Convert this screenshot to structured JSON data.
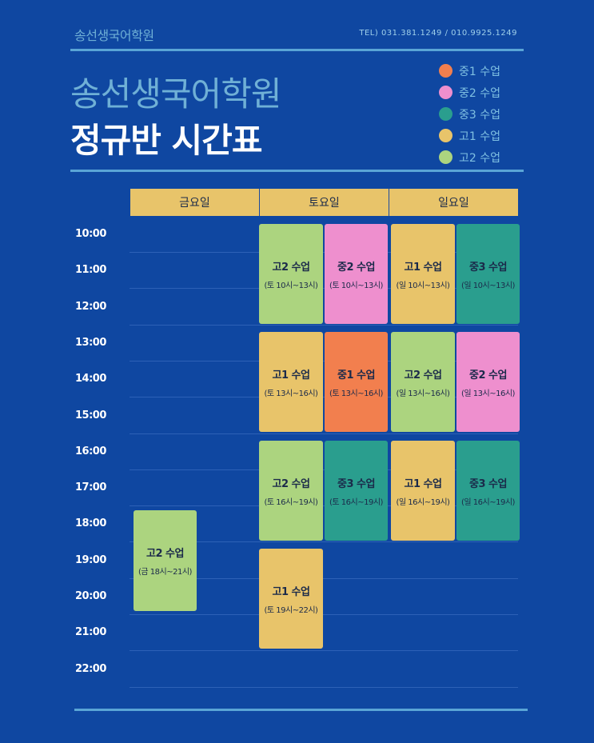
{
  "header": {
    "brand_small": "송선생국어학원",
    "tel": "TEL) 031.381.1249 / 010.9925.1249",
    "title_main": "송선생국어학원",
    "title_sub": "정규반 시간표"
  },
  "legend": [
    {
      "label": "중1 수업",
      "color": "#f27f4e"
    },
    {
      "label": "중2 수업",
      "color": "#ee8fce"
    },
    {
      "label": "중3 수업",
      "color": "#2a9e8e"
    },
    {
      "label": "고1 수업",
      "color": "#e8c46a"
    },
    {
      "label": "고2 수업",
      "color": "#acd47f"
    }
  ],
  "days": [
    "금요일",
    "토요일",
    "일요일"
  ],
  "times": [
    "10:00",
    "11:00",
    "12:00",
    "13:00",
    "14:00",
    "15:00",
    "16:00",
    "17:00",
    "18:00",
    "19:00",
    "20:00",
    "21:00",
    "22:00"
  ],
  "classes": [
    {
      "title": "고2 수업",
      "sub": "(토 10시~13시)",
      "color": "#acd47f"
    },
    {
      "title": "중2 수업",
      "sub": "(토 10시~13시)",
      "color": "#ee8fce"
    },
    {
      "title": "고1 수업",
      "sub": "(일 10시~13시)",
      "color": "#e8c46a"
    },
    {
      "title": "중3 수업",
      "sub": "(일 10시~13시)",
      "color": "#2a9e8e"
    },
    {
      "title": "고1 수업",
      "sub": "(토 13시~16시)",
      "color": "#e8c46a"
    },
    {
      "title": "중1 수업",
      "sub": "(토 13시~16시)",
      "color": "#f27f4e"
    },
    {
      "title": "고2 수업",
      "sub": "(일 13시~16시)",
      "color": "#acd47f"
    },
    {
      "title": "중2 수업",
      "sub": "(일 13시~16시)",
      "color": "#ee8fce"
    },
    {
      "title": "고2 수업",
      "sub": "(토 16시~19시)",
      "color": "#acd47f"
    },
    {
      "title": "중3 수업",
      "sub": "(토 16시~19시)",
      "color": "#2a9e8e"
    },
    {
      "title": "고1 수업",
      "sub": "(일 16시~19시)",
      "color": "#e8c46a"
    },
    {
      "title": "중3 수업",
      "sub": "(일 16시~19시)",
      "color": "#2a9e8e"
    },
    {
      "title": "고2 수업",
      "sub": "(금 18시~21시)",
      "color": "#acd47f"
    },
    {
      "title": "고1 수업",
      "sub": "(토 19시~22시)",
      "color": "#e8c46a"
    }
  ]
}
